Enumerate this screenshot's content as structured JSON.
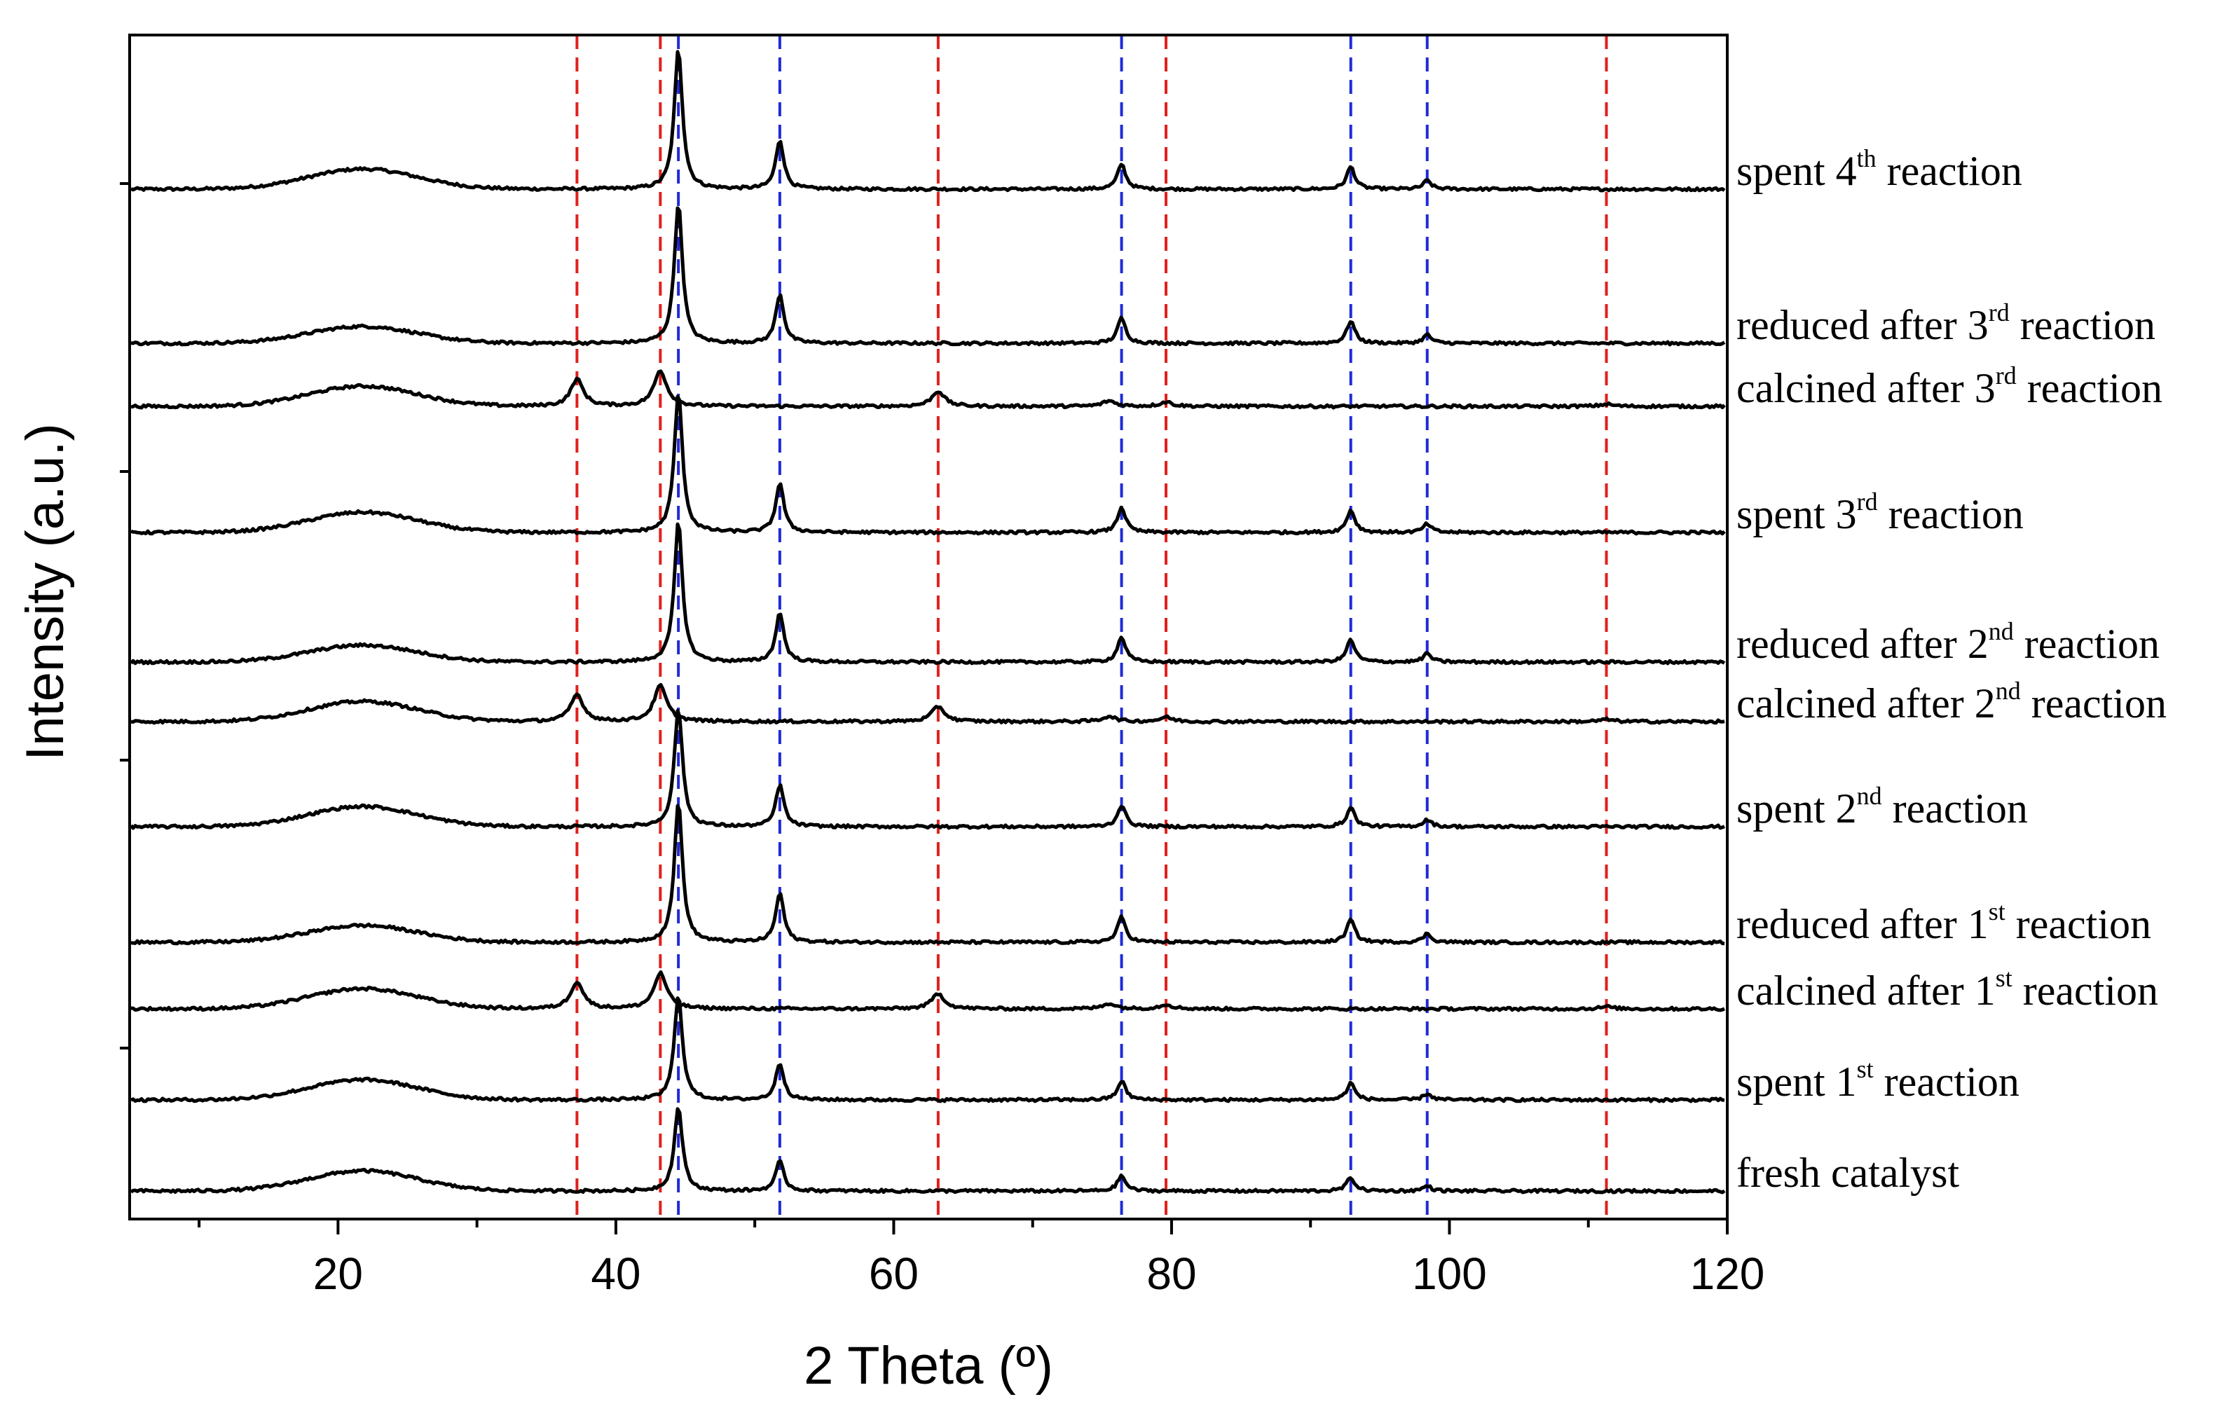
{
  "chart_data": {
    "type": "line",
    "xlabel": "2 Theta (º)",
    "ylabel": "Intensity (a.u.)",
    "xlim": [
      5,
      120
    ],
    "xticks": [
      20,
      40,
      60,
      80,
      100,
      120
    ],
    "xtick_labels": [
      "20",
      "40",
      "60",
      "80",
      "100",
      "120"
    ],
    "grid": false,
    "reference_lines": {
      "red": [
        37.2,
        43.2,
        63.2,
        79.6,
        111.3
      ],
      "blue": [
        44.5,
        51.8,
        76.4,
        92.9,
        98.4
      ],
      "red_color": "#e0201b",
      "blue_color": "#1f2bd6"
    },
    "series": [
      {
        "name": "spent 4th reaction",
        "label": {
          "pre": "spent 4",
          "sup": "th",
          "post": " reaction"
        },
        "type": "metal",
        "offset": 10,
        "hump": 0.18,
        "metal": 1.0,
        "oxide": 0
      },
      {
        "name": "reduced after 3rd reaction",
        "label": {
          "pre": "reduced after 3",
          "sup": "rd",
          "post": " reaction"
        },
        "type": "metal",
        "offset": 9,
        "hump": 0.15,
        "metal": 1.0,
        "oxide": 0
      },
      {
        "name": "calcined after 3rd reaction",
        "label": {
          "pre": "calcined after 3",
          "sup": "rd",
          "post": " reaction"
        },
        "type": "oxide",
        "offset": 8,
        "hump": 0.18,
        "metal": 0,
        "oxide": 1.0
      },
      {
        "name": "spent 3rd reaction",
        "label": {
          "pre": "spent 3",
          "sup": "rd",
          "post": " reaction"
        },
        "type": "metal",
        "offset": 7,
        "hump": 0.18,
        "metal": 1.0,
        "oxide": 0
      },
      {
        "name": "reduced after 2nd reaction",
        "label": {
          "pre": "reduced after 2",
          "sup": "nd",
          "post": " reaction"
        },
        "type": "metal",
        "offset": 6,
        "hump": 0.15,
        "metal": 1.0,
        "oxide": 0
      },
      {
        "name": "calcined after 2nd reaction",
        "label": {
          "pre": "calcined after 2",
          "sup": "nd",
          "post": " reaction"
        },
        "type": "oxide",
        "offset": 5,
        "hump": 0.18,
        "metal": 0,
        "oxide": 1.0
      },
      {
        "name": "spent 2nd reaction",
        "label": {
          "pre": "spent 2",
          "sup": "nd",
          "post": " reaction"
        },
        "type": "metal",
        "offset": 4,
        "hump": 0.18,
        "metal": 0.85,
        "oxide": 0
      },
      {
        "name": "reduced after 1st reaction",
        "label": {
          "pre": "reduced after 1",
          "sup": "st",
          "post": " reaction"
        },
        "type": "metal",
        "offset": 3,
        "hump": 0.15,
        "metal": 1.0,
        "oxide": 0
      },
      {
        "name": "calcined after 1st reaction",
        "label": {
          "pre": "calcined after 1",
          "sup": "st",
          "post": " reaction"
        },
        "type": "oxide",
        "offset": 2,
        "hump": 0.18,
        "metal": 0,
        "oxide": 1.0
      },
      {
        "name": "spent 1st reaction",
        "label": {
          "pre": "spent 1",
          "sup": "st",
          "post": " reaction"
        },
        "type": "metal",
        "offset": 1,
        "hump": 0.18,
        "metal": 0.75,
        "oxide": 0
      },
      {
        "name": "fresh catalyst",
        "label": {
          "pre": "fresh catalyst",
          "sup": "",
          "post": ""
        },
        "type": "metal",
        "offset": 0,
        "hump": 0.18,
        "metal": 0.6,
        "oxide": 0
      }
    ],
    "peaks": {
      "hump_center": 21.8,
      "metal": [
        [
          44.5,
          1.0
        ],
        [
          51.8,
          0.35
        ],
        [
          76.4,
          0.18
        ],
        [
          92.9,
          0.16
        ],
        [
          98.4,
          0.06
        ]
      ],
      "oxide": [
        [
          37.2,
          0.25
        ],
        [
          43.2,
          0.33
        ],
        [
          63.2,
          0.14
        ],
        [
          75.5,
          0.05
        ],
        [
          79.6,
          0.04
        ],
        [
          111.3,
          0.02
        ]
      ]
    }
  }
}
